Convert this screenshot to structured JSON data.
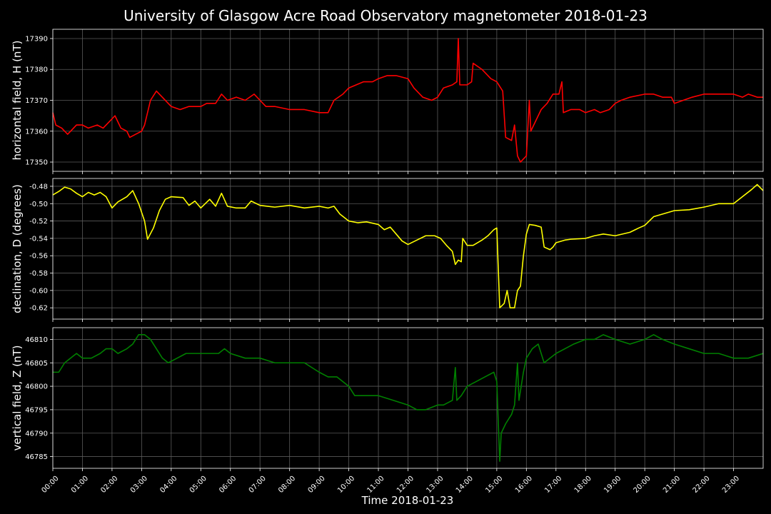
{
  "chart_data": {
    "type": "line",
    "title": "University of Glasgow Acre Road Observatory magnetometer 2018-01-23",
    "xlabel": "Time 2018-01-23",
    "grid": true,
    "background": "#000000",
    "x_ticks": [
      "00:00",
      "01:00",
      "02:00",
      "03:00",
      "04:00",
      "05:00",
      "06:00",
      "07:00",
      "08:00",
      "09:00",
      "10:00",
      "11:00",
      "12:00",
      "13:00",
      "14:00",
      "15:00",
      "16:00",
      "17:00",
      "18:00",
      "19:00",
      "20:00",
      "21:00",
      "22:00",
      "23:00"
    ],
    "xlim_hours": [
      0,
      24
    ],
    "panels": [
      {
        "ylabel": "horizontal field, H (nT)",
        "color": "#ff0000",
        "ylim": [
          17347,
          17393
        ],
        "yticks": [
          "17350",
          "17360",
          "17370",
          "17380",
          "17390"
        ],
        "points": [
          [
            0,
            17366
          ],
          [
            0.1,
            17362
          ],
          [
            0.3,
            17361
          ],
          [
            0.5,
            17359
          ],
          [
            0.6,
            17360
          ],
          [
            0.8,
            17362
          ],
          [
            1,
            17362
          ],
          [
            1.2,
            17361
          ],
          [
            1.5,
            17362
          ],
          [
            1.7,
            17361
          ],
          [
            1.9,
            17363
          ],
          [
            2.1,
            17365
          ],
          [
            2.3,
            17361
          ],
          [
            2.5,
            17360
          ],
          [
            2.6,
            17358
          ],
          [
            2.8,
            17359
          ],
          [
            3,
            17360
          ],
          [
            3.1,
            17362
          ],
          [
            3.3,
            17370
          ],
          [
            3.5,
            17373
          ],
          [
            3.7,
            17371
          ],
          [
            4,
            17368
          ],
          [
            4.3,
            17367
          ],
          [
            4.6,
            17368
          ],
          [
            5,
            17368
          ],
          [
            5.2,
            17369
          ],
          [
            5.5,
            17369
          ],
          [
            5.7,
            17372
          ],
          [
            5.9,
            17370
          ],
          [
            6.2,
            17371
          ],
          [
            6.5,
            17370
          ],
          [
            6.8,
            17372
          ],
          [
            7,
            17370
          ],
          [
            7.2,
            17368
          ],
          [
            7.5,
            17368
          ],
          [
            8,
            17367
          ],
          [
            8.5,
            17367
          ],
          [
            9,
            17366
          ],
          [
            9.3,
            17366
          ],
          [
            9.5,
            17370
          ],
          [
            9.8,
            17372
          ],
          [
            10,
            17374
          ],
          [
            10.5,
            17376
          ],
          [
            10.8,
            17376
          ],
          [
            11,
            17377
          ],
          [
            11.3,
            17378
          ],
          [
            11.6,
            17378
          ],
          [
            12,
            17377
          ],
          [
            12.2,
            17374
          ],
          [
            12.5,
            17371
          ],
          [
            12.8,
            17370
          ],
          [
            13,
            17371
          ],
          [
            13.2,
            17374
          ],
          [
            13.5,
            17375
          ],
          [
            13.65,
            17376
          ],
          [
            13.7,
            17390
          ],
          [
            13.75,
            17375
          ],
          [
            14,
            17375
          ],
          [
            14.15,
            17376
          ],
          [
            14.2,
            17382
          ],
          [
            14.5,
            17380
          ],
          [
            14.8,
            17377
          ],
          [
            15,
            17376
          ],
          [
            15.2,
            17373
          ],
          [
            15.3,
            17358
          ],
          [
            15.5,
            17357
          ],
          [
            15.6,
            17362
          ],
          [
            15.7,
            17352
          ],
          [
            15.8,
            17350
          ],
          [
            15.9,
            17351
          ],
          [
            16,
            17352
          ],
          [
            16.1,
            17370
          ],
          [
            16.15,
            17360
          ],
          [
            16.3,
            17363
          ],
          [
            16.5,
            17367
          ],
          [
            16.7,
            17369
          ],
          [
            16.9,
            17372
          ],
          [
            17.1,
            17372
          ],
          [
            17.2,
            17376
          ],
          [
            17.25,
            17366
          ],
          [
            17.5,
            17367
          ],
          [
            17.8,
            17367
          ],
          [
            18,
            17366
          ],
          [
            18.3,
            17367
          ],
          [
            18.5,
            17366
          ],
          [
            18.8,
            17367
          ],
          [
            19,
            17369
          ],
          [
            19.2,
            17370
          ],
          [
            19.5,
            17371
          ],
          [
            20,
            17372
          ],
          [
            20.3,
            17372
          ],
          [
            20.6,
            17371
          ],
          [
            20.9,
            17371
          ],
          [
            21,
            17369
          ],
          [
            21.3,
            17370
          ],
          [
            21.6,
            17371
          ],
          [
            22,
            17372
          ],
          [
            22.5,
            17372
          ],
          [
            23,
            17372
          ],
          [
            23.3,
            17371
          ],
          [
            23.5,
            17372
          ],
          [
            23.8,
            17371
          ],
          [
            24,
            17371
          ]
        ]
      },
      {
        "ylabel": "declination, D (degrees)",
        "color": "#ffff00",
        "ylim": [
          -0.633,
          -0.471
        ],
        "yticks": [
          "-0.48",
          "-0.50",
          "-0.52",
          "-0.54",
          "-0.56",
          "-0.58",
          "-0.60",
          "-0.62"
        ],
        "points": [
          [
            0,
            -0.49
          ],
          [
            0.2,
            -0.486
          ],
          [
            0.4,
            -0.481
          ],
          [
            0.6,
            -0.483
          ],
          [
            0.8,
            -0.488
          ],
          [
            1,
            -0.492
          ],
          [
            1.2,
            -0.487
          ],
          [
            1.4,
            -0.49
          ],
          [
            1.6,
            -0.487
          ],
          [
            1.8,
            -0.492
          ],
          [
            2,
            -0.505
          ],
          [
            2.2,
            -0.498
          ],
          [
            2.5,
            -0.492
          ],
          [
            2.7,
            -0.485
          ],
          [
            2.9,
            -0.5
          ],
          [
            3.1,
            -0.52
          ],
          [
            3.2,
            -0.541
          ],
          [
            3.4,
            -0.528
          ],
          [
            3.6,
            -0.508
          ],
          [
            3.8,
            -0.495
          ],
          [
            4,
            -0.492
          ],
          [
            4.4,
            -0.493
          ],
          [
            4.6,
            -0.502
          ],
          [
            4.8,
            -0.497
          ],
          [
            5,
            -0.505
          ],
          [
            5.3,
            -0.495
          ],
          [
            5.5,
            -0.503
          ],
          [
            5.7,
            -0.488
          ],
          [
            5.9,
            -0.503
          ],
          [
            6.2,
            -0.505
          ],
          [
            6.5,
            -0.505
          ],
          [
            6.7,
            -0.497
          ],
          [
            7,
            -0.502
          ],
          [
            7.5,
            -0.504
          ],
          [
            8,
            -0.502
          ],
          [
            8.5,
            -0.505
          ],
          [
            9,
            -0.503
          ],
          [
            9.3,
            -0.505
          ],
          [
            9.5,
            -0.503
          ],
          [
            9.7,
            -0.512
          ],
          [
            10,
            -0.52
          ],
          [
            10.3,
            -0.522
          ],
          [
            10.6,
            -0.521
          ],
          [
            11,
            -0.524
          ],
          [
            11.2,
            -0.53
          ],
          [
            11.4,
            -0.527
          ],
          [
            11.6,
            -0.535
          ],
          [
            11.8,
            -0.543
          ],
          [
            12,
            -0.547
          ],
          [
            12.3,
            -0.542
          ],
          [
            12.6,
            -0.537
          ],
          [
            12.9,
            -0.537
          ],
          [
            13.1,
            -0.54
          ],
          [
            13.3,
            -0.548
          ],
          [
            13.5,
            -0.555
          ],
          [
            13.6,
            -0.57
          ],
          [
            13.7,
            -0.565
          ],
          [
            13.8,
            -0.567
          ],
          [
            13.85,
            -0.54
          ],
          [
            14,
            -0.548
          ],
          [
            14.2,
            -0.548
          ],
          [
            14.5,
            -0.542
          ],
          [
            14.7,
            -0.537
          ],
          [
            14.9,
            -0.53
          ],
          [
            15,
            -0.528
          ],
          [
            15.1,
            -0.62
          ],
          [
            15.25,
            -0.615
          ],
          [
            15.35,
            -0.6
          ],
          [
            15.45,
            -0.62
          ],
          [
            15.6,
            -0.62
          ],
          [
            15.7,
            -0.6
          ],
          [
            15.8,
            -0.595
          ],
          [
            15.9,
            -0.56
          ],
          [
            16,
            -0.535
          ],
          [
            16.1,
            -0.524
          ],
          [
            16.3,
            -0.525
          ],
          [
            16.5,
            -0.527
          ],
          [
            16.6,
            -0.55
          ],
          [
            16.8,
            -0.553
          ],
          [
            16.9,
            -0.55
          ],
          [
            17,
            -0.545
          ],
          [
            17.3,
            -0.542
          ],
          [
            17.5,
            -0.541
          ],
          [
            18,
            -0.54
          ],
          [
            18.3,
            -0.537
          ],
          [
            18.6,
            -0.535
          ],
          [
            19,
            -0.537
          ],
          [
            19.5,
            -0.533
          ],
          [
            19.8,
            -0.528
          ],
          [
            20,
            -0.525
          ],
          [
            20.3,
            -0.515
          ],
          [
            20.6,
            -0.512
          ],
          [
            21,
            -0.508
          ],
          [
            21.5,
            -0.507
          ],
          [
            22,
            -0.504
          ],
          [
            22.5,
            -0.5
          ],
          [
            23,
            -0.5
          ],
          [
            23.3,
            -0.492
          ],
          [
            23.6,
            -0.484
          ],
          [
            23.8,
            -0.478
          ],
          [
            24,
            -0.485
          ]
        ]
      },
      {
        "ylabel": "vertical field, Z (nT)",
        "color": "#008000",
        "ylim": [
          46782.5,
          46812.5
        ],
        "yticks": [
          "46785",
          "46790",
          "46795",
          "46800",
          "46805",
          "46810"
        ],
        "points": [
          [
            0,
            46803
          ],
          [
            0.2,
            46803
          ],
          [
            0.4,
            46805
          ],
          [
            0.6,
            46806
          ],
          [
            0.8,
            46807
          ],
          [
            1,
            46806
          ],
          [
            1.3,
            46806
          ],
          [
            1.6,
            46807
          ],
          [
            1.8,
            46808
          ],
          [
            2,
            46808
          ],
          [
            2.2,
            46807
          ],
          [
            2.5,
            46808
          ],
          [
            2.7,
            46809
          ],
          [
            2.9,
            46811
          ],
          [
            3.1,
            46811
          ],
          [
            3.3,
            46810
          ],
          [
            3.5,
            46808
          ],
          [
            3.7,
            46806
          ],
          [
            3.9,
            46805
          ],
          [
            4.2,
            46806
          ],
          [
            4.5,
            46807
          ],
          [
            4.8,
            46807
          ],
          [
            5,
            46807
          ],
          [
            5.3,
            46807
          ],
          [
            5.6,
            46807
          ],
          [
            5.8,
            46808
          ],
          [
            6,
            46807
          ],
          [
            6.5,
            46806
          ],
          [
            7,
            46806
          ],
          [
            7.5,
            46805
          ],
          [
            8,
            46805
          ],
          [
            8.5,
            46805
          ],
          [
            9,
            46803
          ],
          [
            9.3,
            46802
          ],
          [
            9.6,
            46802
          ],
          [
            10,
            46800
          ],
          [
            10.2,
            46798
          ],
          [
            10.5,
            46798
          ],
          [
            11,
            46798
          ],
          [
            11.5,
            46797
          ],
          [
            12,
            46796
          ],
          [
            12.3,
            46795
          ],
          [
            12.6,
            46795
          ],
          [
            13,
            46796
          ],
          [
            13.2,
            46796
          ],
          [
            13.5,
            46797
          ],
          [
            13.6,
            46804
          ],
          [
            13.65,
            46797
          ],
          [
            13.8,
            46798
          ],
          [
            14,
            46800
          ],
          [
            14.3,
            46801
          ],
          [
            14.6,
            46802
          ],
          [
            14.9,
            46803
          ],
          [
            15,
            46801
          ],
          [
            15.1,
            46784
          ],
          [
            15.15,
            46790
          ],
          [
            15.3,
            46792
          ],
          [
            15.5,
            46794
          ],
          [
            15.6,
            46796
          ],
          [
            15.7,
            46805
          ],
          [
            15.75,
            46797
          ],
          [
            15.9,
            46803
          ],
          [
            16,
            46806
          ],
          [
            16.2,
            46808
          ],
          [
            16.4,
            46809
          ],
          [
            16.5,
            46807
          ],
          [
            16.6,
            46805
          ],
          [
            16.8,
            46806
          ],
          [
            17,
            46807
          ],
          [
            17.3,
            46808
          ],
          [
            17.6,
            46809
          ],
          [
            18,
            46810
          ],
          [
            18.3,
            46810
          ],
          [
            18.6,
            46811
          ],
          [
            19,
            46810
          ],
          [
            19.5,
            46809
          ],
          [
            20,
            46810
          ],
          [
            20.3,
            46811
          ],
          [
            20.6,
            46810
          ],
          [
            21,
            46809
          ],
          [
            21.5,
            46808
          ],
          [
            22,
            46807
          ],
          [
            22.5,
            46807
          ],
          [
            23,
            46806
          ],
          [
            23.5,
            46806
          ],
          [
            24,
            46807
          ]
        ]
      }
    ]
  }
}
